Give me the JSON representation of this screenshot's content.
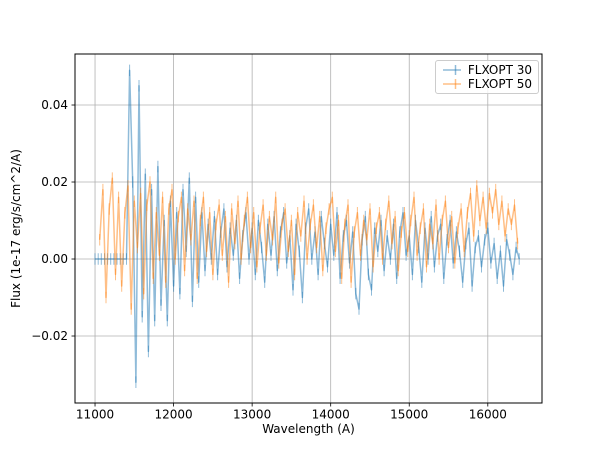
{
  "chart_data": {
    "type": "line",
    "title": "",
    "xlabel": "Wavelength (A)",
    "ylabel": "Flux (1e-17 erg/s/cm^2/A)",
    "xlim": [
      10745,
      16690
    ],
    "ylim": [
      -0.0374,
      0.05325
    ],
    "xticks": [
      11000,
      12000,
      13000,
      14000,
      15000,
      16000
    ],
    "yticks": {
      "values": [
        0.04,
        0.02,
        0.0,
        -0.02
      ],
      "labels": [
        "0.04",
        "0.02",
        "0.00",
        "−0.02"
      ]
    },
    "grid": true,
    "grid_color": "#b0b0b0",
    "axis_color": "#000000",
    "legend_loc": "upper right",
    "series": [
      {
        "name": "FLXOPT 30",
        "color": "#1f77b4",
        "alpha": 0.5,
        "linewidth": 1.5,
        "yerr": 0.0015,
        "x_start": 11000,
        "x_step": 40,
        "values": [
          0,
          0,
          0,
          0,
          0,
          0,
          0,
          0,
          0,
          0,
          0,
          0.049,
          0.02,
          -0.032,
          0.045,
          -0.015,
          0.022,
          -0.024,
          0.018,
          -0.016,
          0.024,
          -0.012,
          0.01,
          -0.016,
          0.015,
          -0.007,
          0.012,
          -0.009,
          0.018,
          0.002,
          0.021,
          -0.011,
          0.016,
          -0.006,
          0.012,
          -0.003,
          0.009,
          0.0,
          0.011,
          -0.004,
          0.007,
          0.013,
          -0.002,
          0.008,
          0.001,
          0.01,
          -0.005,
          0.006,
          0.012,
          0.0,
          0.008,
          -0.004,
          0.01,
          0.003,
          -0.006,
          0.009,
          0.001,
          0.011,
          -0.003,
          0.007,
          0.012,
          -0.001,
          0.006,
          -0.008,
          0.009,
          0.002,
          -0.01,
          0.008,
          0.013,
          0.0,
          0.007,
          -0.004,
          0.011,
          0.004,
          -0.002,
          0.009,
          0.001,
          0.012,
          -0.005,
          0.006,
          0.01,
          -0.001,
          0.007,
          -0.009,
          -0.013,
          0.005,
          0.011,
          -0.004,
          -0.008,
          0.008,
          0.002,
          0.01,
          -0.003,
          0.006,
          0.0,
          0.009,
          -0.005,
          0.007,
          0.012,
          0.001,
          0.006,
          -0.004,
          0.01,
          0.003,
          -0.006,
          0.008,
          0.0,
          0.011,
          -0.002,
          0.006,
          0.009,
          -0.005,
          0.005,
          0.01,
          -0.001,
          0.007,
          0.002,
          -0.006,
          0.004,
          0.008,
          -0.007,
          0.003,
          0.006,
          -0.002,
          0.005,
          0.008,
          -0.001,
          0.004,
          -0.005,
          0.002,
          -0.007,
          0.005,
          0.001,
          -0.004,
          0.003,
          0.0
        ]
      },
      {
        "name": "FLXOPT 50",
        "color": "#ff7f0e",
        "alpha": 0.5,
        "linewidth": 1.5,
        "yerr": 0.0015,
        "x_start": 11060,
        "x_step": 40,
        "values": [
          0.005,
          0.018,
          -0.01,
          0.013,
          0.021,
          -0.004,
          0.016,
          -0.007,
          0.012,
          0.019,
          -0.013,
          0.015,
          0.003,
          0.017,
          -0.009,
          0.014,
          0.02,
          -0.005,
          0.012,
          0.001,
          0.016,
          -0.006,
          0.013,
          0.018,
          0.0,
          0.011,
          0.016,
          -0.003,
          0.013,
          0.005,
          0.015,
          -0.005,
          0.01,
          0.016,
          0.002,
          0.012,
          -0.004,
          0.009,
          0.014,
          0.001,
          0.011,
          -0.006,
          0.013,
          0.004,
          0.015,
          0.0,
          0.01,
          0.016,
          0.003,
          0.012,
          -0.002,
          0.008,
          0.014,
          0.001,
          0.011,
          0.005,
          0.016,
          -0.001,
          0.009,
          0.013,
          0.002,
          0.01,
          -0.004,
          0.012,
          0.006,
          0.015,
          0.0,
          0.009,
          0.014,
          0.003,
          0.011,
          -0.003,
          0.008,
          0.013,
          0.016,
          0.002,
          0.01,
          -0.005,
          0.009,
          0.014,
          -0.006,
          0.007,
          0.012,
          0.001,
          0.01,
          0.005,
          0.013,
          -0.002,
          0.008,
          0.012,
          0.0,
          0.009,
          0.015,
          0.004,
          0.011,
          -0.003,
          0.007,
          0.012,
          0.002,
          0.01,
          0.016,
          0.001,
          0.008,
          0.013,
          -0.002,
          0.009,
          0.004,
          0.014,
          0.0,
          0.01,
          0.015,
          0.003,
          0.011,
          -0.001,
          0.008,
          0.013,
          0.002,
          0.012,
          0.017,
          0.006,
          0.019,
          0.01,
          0.016,
          0.008,
          0.017,
          0.012,
          0.018,
          0.009,
          0.015,
          0.006,
          0.013,
          0.009,
          0.014,
          0.004
        ]
      }
    ]
  }
}
